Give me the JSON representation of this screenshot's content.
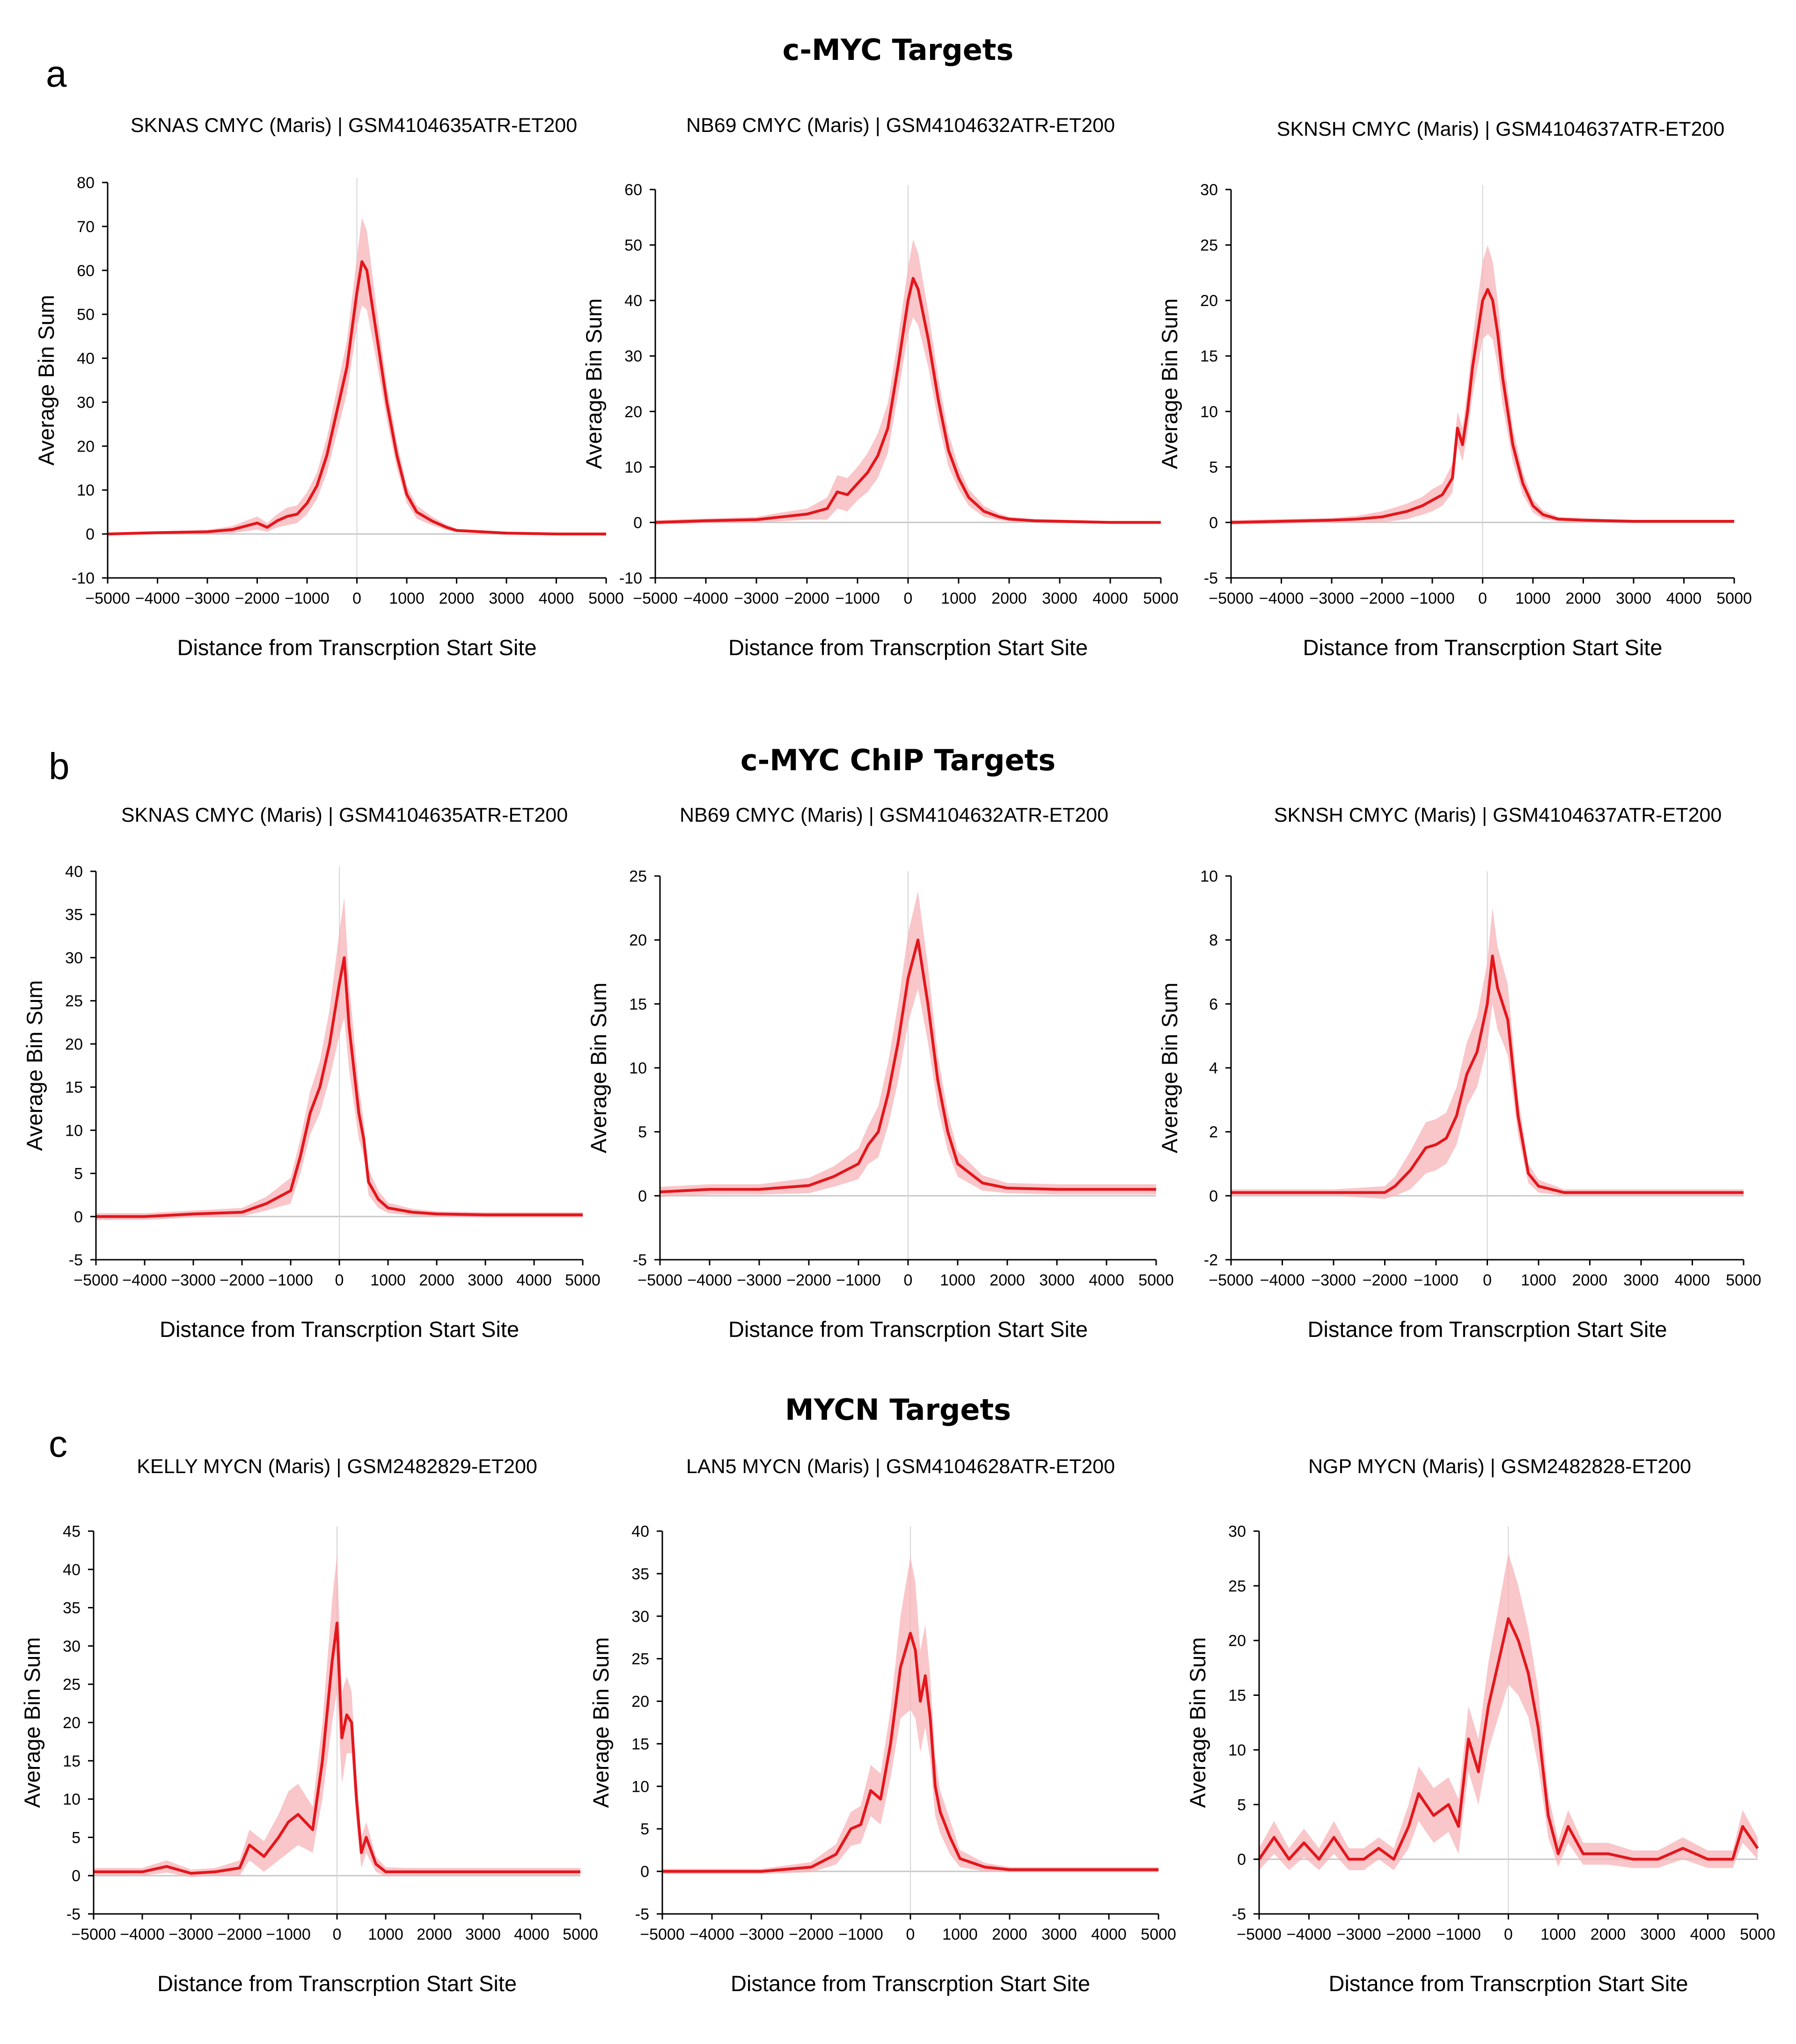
{
  "figure": {
    "sections": [
      {
        "letter": "a",
        "title": "c-MYC Targets"
      },
      {
        "letter": "b",
        "title": "c-MYC ChIP Targets"
      },
      {
        "letter": "c",
        "title": "MYCN Targets"
      }
    ],
    "colors": {
      "line": "#e3171c",
      "band": "#f7b3b8",
      "axis": "#000000",
      "baseline": "#c8c8c8",
      "center": "#d4d4d4"
    }
  },
  "chart_data": [
    {
      "type": "line",
      "title": "SKNAS CMYC (Maris) | GSM4104635ATR-ET200",
      "xlabel": "Distance from Transcrption Start Site",
      "ylabel": "Average Bin Sum",
      "xlim": [
        -5000,
        5000
      ],
      "ylim": [
        -10,
        80
      ],
      "yticks": [
        -10,
        0,
        10,
        20,
        30,
        40,
        50,
        60,
        70,
        80
      ],
      "xticks": [
        -5000,
        -4000,
        -3000,
        -2000,
        -1000,
        0,
        1000,
        2000,
        3000,
        4000,
        5000
      ],
      "x": [
        -5000,
        -4000,
        -3000,
        -2500,
        -2000,
        -1800,
        -1600,
        -1400,
        -1200,
        -1000,
        -800,
        -600,
        -400,
        -200,
        0,
        100,
        200,
        400,
        600,
        800,
        1000,
        1200,
        1500,
        1800,
        2000,
        2500,
        3000,
        4000,
        5000
      ],
      "y": [
        0,
        0.3,
        0.5,
        1,
        2.5,
        1.5,
        3,
        4,
        4.5,
        7,
        11,
        18,
        28,
        38,
        55,
        62,
        60,
        45,
        30,
        18,
        9,
        5,
        3,
        1.5,
        0.8,
        0.5,
        0.2,
        0,
        0
      ],
      "band": [
        0.3,
        0.3,
        0.4,
        0.8,
        1.5,
        1,
        1.5,
        2,
        2,
        2.5,
        3,
        4,
        5,
        6,
        8,
        10,
        9,
        6,
        4,
        3,
        2,
        1.5,
        1,
        0.6,
        0.4,
        0.3,
        0.2,
        0.2,
        0.2
      ]
    },
    {
      "type": "line",
      "title": "NB69 CMYC (Maris) | GSM4104632ATR-ET200",
      "xlabel": "Distance from Transcrption Start Site",
      "ylabel": "Average Bin Sum",
      "xlim": [
        -5000,
        5000
      ],
      "ylim": [
        -10,
        60
      ],
      "yticks": [
        -10,
        0,
        10,
        20,
        30,
        40,
        50,
        60
      ],
      "xticks": [
        -5000,
        -4000,
        -3000,
        -2000,
        -1000,
        0,
        1000,
        2000,
        3000,
        4000,
        5000
      ],
      "x": [
        -5000,
        -4000,
        -3000,
        -2500,
        -2000,
        -1800,
        -1600,
        -1400,
        -1200,
        -1000,
        -800,
        -600,
        -400,
        -200,
        0,
        100,
        200,
        400,
        600,
        800,
        1000,
        1200,
        1500,
        1800,
        2000,
        2500,
        3000,
        4000,
        5000
      ],
      "y": [
        0,
        0.3,
        0.5,
        1,
        1.5,
        2,
        2.5,
        5.5,
        5,
        7,
        9,
        12,
        17,
        28,
        40,
        44,
        42,
        33,
        22,
        13,
        8,
        4.5,
        2,
        1,
        0.6,
        0.3,
        0.2,
        0,
        0
      ],
      "band": [
        0.4,
        0.4,
        0.5,
        0.8,
        1,
        1.5,
        2,
        3,
        3,
        3,
        3.5,
        4,
        4.5,
        5,
        6,
        7,
        6.5,
        5,
        4,
        3,
        2,
        1.5,
        1,
        0.6,
        0.4,
        0.3,
        0.3,
        0.2,
        0.2
      ]
    },
    {
      "type": "line",
      "title": "SKNSH CMYC (Maris) | GSM4104637ATR-ET200",
      "xlabel": "Distance from Transcrption Start Site",
      "ylabel": "Average Bin Sum",
      "xlim": [
        -5000,
        5000
      ],
      "ylim": [
        -5,
        30
      ],
      "yticks": [
        -5,
        0,
        5,
        10,
        15,
        20,
        25,
        30
      ],
      "xticks": [
        -5000,
        -4000,
        -3000,
        -2000,
        -1000,
        0,
        1000,
        2000,
        3000,
        4000,
        5000
      ],
      "x": [
        -5000,
        -4000,
        -3000,
        -2500,
        -2000,
        -1500,
        -1200,
        -1000,
        -800,
        -600,
        -500,
        -400,
        -300,
        -200,
        0,
        100,
        200,
        300,
        400,
        600,
        800,
        1000,
        1200,
        1500,
        2000,
        3000,
        4000,
        5000
      ],
      "y": [
        0,
        0.1,
        0.2,
        0.3,
        0.5,
        1,
        1.5,
        2,
        2.5,
        4,
        8.5,
        7,
        10,
        14,
        20,
        21,
        20,
        17,
        13,
        7,
        3.5,
        1.5,
        0.7,
        0.3,
        0.2,
        0.1,
        0.1,
        0.1
      ],
      "band": [
        0.2,
        0.2,
        0.2,
        0.3,
        0.5,
        0.7,
        0.8,
        1,
        1,
        1.3,
        1.5,
        1.5,
        2,
        2.5,
        3.5,
        4,
        3.5,
        3,
        2.5,
        1.5,
        1,
        0.6,
        0.4,
        0.2,
        0.2,
        0.1,
        0.1,
        0.1
      ]
    },
    {
      "type": "line",
      "title": "SKNAS CMYC (Maris) | GSM4104635ATR-ET200",
      "xlabel": "Distance from Transcrption Start Site",
      "ylabel": "Average Bin Sum",
      "xlim": [
        -5000,
        5000
      ],
      "ylim": [
        -5,
        40
      ],
      "yticks": [
        -5,
        0,
        5,
        10,
        15,
        20,
        25,
        30,
        35,
        40
      ],
      "xticks": [
        -5000,
        -4000,
        -3000,
        -2000,
        -1000,
        0,
        1000,
        2000,
        3000,
        4000,
        5000
      ],
      "x": [
        -5000,
        -4000,
        -3000,
        -2000,
        -1500,
        -1000,
        -800,
        -600,
        -400,
        -200,
        0,
        100,
        200,
        400,
        500,
        600,
        800,
        1000,
        1500,
        2000,
        3000,
        4000,
        5000
      ],
      "y": [
        0,
        0,
        0.3,
        0.5,
        1.5,
        3,
        7,
        12,
        15,
        20,
        27,
        30,
        22,
        12,
        9,
        4,
        2,
        1,
        0.5,
        0.3,
        0.2,
        0.2,
        0.2
      ],
      "band": [
        0.4,
        0.4,
        0.4,
        0.5,
        0.8,
        1.5,
        2,
        2.5,
        3,
        4,
        6,
        7,
        5,
        3,
        2,
        1.5,
        1,
        0.6,
        0.4,
        0.3,
        0.3,
        0.3,
        0.3
      ]
    },
    {
      "type": "line",
      "title": "NB69 CMYC (Maris) | GSM4104632ATR-ET200",
      "xlabel": "Distance from Transcrption Start Site",
      "ylabel": "Average Bin Sum",
      "xlim": [
        -5000,
        5000
      ],
      "ylim": [
        -5,
        25
      ],
      "yticks": [
        -5,
        0,
        5,
        10,
        15,
        20,
        25
      ],
      "xticks": [
        -5000,
        -4000,
        -3000,
        -2000,
        -1000,
        0,
        1000,
        2000,
        3000,
        4000,
        5000
      ],
      "x": [
        -5000,
        -4000,
        -3000,
        -2000,
        -1500,
        -1000,
        -800,
        -600,
        -400,
        -200,
        0,
        200,
        400,
        600,
        800,
        1000,
        1500,
        2000,
        3000,
        4000,
        5000
      ],
      "y": [
        0.3,
        0.5,
        0.5,
        0.8,
        1.5,
        2.5,
        4,
        5,
        8,
        12,
        17,
        20,
        15,
        9,
        5,
        2.5,
        1,
        0.6,
        0.5,
        0.5,
        0.5
      ],
      "band": [
        0.4,
        0.4,
        0.4,
        0.6,
        0.8,
        1.2,
        1.5,
        2,
        2.5,
        3,
        3.5,
        3.8,
        3,
        2,
        1.5,
        1,
        0.6,
        0.4,
        0.4,
        0.4,
        0.4
      ]
    },
    {
      "type": "line",
      "title": "SKNSH CMYC (Maris) | GSM4104637ATR-ET200",
      "xlabel": "Distance from Transcrption Start Site",
      "ylabel": "Average Bin Sum",
      "xlim": [
        -5000,
        5000
      ],
      "ylim": [
        -2,
        10
      ],
      "yticks": [
        -2,
        0,
        2,
        4,
        6,
        8,
        10
      ],
      "xticks": [
        -5000,
        -4000,
        -3000,
        -2000,
        -1000,
        0,
        1000,
        2000,
        3000,
        4000,
        5000
      ],
      "x": [
        -5000,
        -4000,
        -3000,
        -2000,
        -1800,
        -1500,
        -1200,
        -1000,
        -800,
        -600,
        -400,
        -200,
        0,
        100,
        200,
        400,
        600,
        800,
        1000,
        1500,
        2000,
        3000,
        4000,
        5000
      ],
      "y": [
        0.1,
        0.1,
        0.1,
        0.1,
        0.3,
        0.8,
        1.5,
        1.6,
        1.8,
        2.5,
        3.8,
        4.5,
        6,
        7.5,
        6.5,
        5.5,
        2.5,
        0.7,
        0.3,
        0.1,
        0.1,
        0.1,
        0.1,
        0.1
      ],
      "band": [
        0.1,
        0.1,
        0.1,
        0.2,
        0.3,
        0.6,
        0.8,
        0.8,
        0.8,
        0.9,
        1,
        1.1,
        1.3,
        1.5,
        1.3,
        1.1,
        0.6,
        0.3,
        0.2,
        0.1,
        0.1,
        0.1,
        0.1,
        0.1
      ]
    },
    {
      "type": "line",
      "title": "KELLY MYCN (Maris) | GSM2482829-ET200",
      "xlabel": "Distance from Transcrption Start Site",
      "ylabel": "Average Bin Sum",
      "xlim": [
        -5000,
        5000
      ],
      "ylim": [
        -5,
        45
      ],
      "yticks": [
        -5,
        0,
        5,
        10,
        15,
        20,
        25,
        30,
        35,
        40,
        45
      ],
      "xticks": [
        -5000,
        -4000,
        -3000,
        -2000,
        -1000,
        0,
        1000,
        2000,
        3000,
        4000,
        5000
      ],
      "x": [
        -5000,
        -4000,
        -3500,
        -3000,
        -2500,
        -2000,
        -1800,
        -1500,
        -1200,
        -1000,
        -800,
        -500,
        -300,
        -100,
        0,
        100,
        200,
        300,
        400,
        500,
        600,
        800,
        1000,
        1500,
        2000,
        3000,
        4000,
        5000
      ],
      "y": [
        0.5,
        0.5,
        1.2,
        0.3,
        0.5,
        1,
        4,
        2.5,
        5,
        7,
        8,
        6,
        15,
        28,
        33,
        18,
        21,
        20,
        10,
        3,
        5,
        1.5,
        0.5,
        0.5,
        0.5,
        0.5,
        0.5,
        0.5
      ],
      "band": [
        0.5,
        0.5,
        0.8,
        0.5,
        0.5,
        1,
        2,
        2,
        3,
        4,
        4,
        3,
        5,
        8,
        9,
        6,
        5,
        4,
        3,
        2,
        2,
        1,
        0.6,
        0.5,
        0.5,
        0.5,
        0.5,
        0.5
      ]
    },
    {
      "type": "line",
      "title": "LAN5 MYCN (Maris) | GSM4104628ATR-ET200",
      "xlabel": "Distance from Transcrption Start Site",
      "ylabel": "Average Bin Sum",
      "xlim": [
        -5000,
        5000
      ],
      "ylim": [
        -5,
        40
      ],
      "yticks": [
        -5,
        0,
        5,
        10,
        15,
        20,
        25,
        30,
        35,
        40
      ],
      "xticks": [
        -5000,
        -4000,
        -3000,
        -2000,
        -1000,
        0,
        1000,
        2000,
        3000,
        4000,
        5000
      ],
      "x": [
        -5000,
        -4000,
        -3000,
        -2000,
        -1500,
        -1200,
        -1000,
        -800,
        -600,
        -400,
        -200,
        0,
        100,
        200,
        300,
        400,
        500,
        600,
        800,
        1000,
        1500,
        2000,
        3000,
        4000,
        5000
      ],
      "y": [
        0,
        0,
        0,
        0.5,
        2,
        5,
        5.5,
        9.5,
        8.5,
        15,
        24,
        28,
        26,
        20,
        23,
        18,
        10,
        7,
        4,
        1.5,
        0.5,
        0.2,
        0.2,
        0.2,
        0.2
      ],
      "band": [
        0.3,
        0.3,
        0.3,
        0.6,
        1.2,
        2,
        2.2,
        3,
        3,
        4,
        6,
        9,
        8,
        6,
        6,
        5,
        3.5,
        2.5,
        2,
        1,
        0.5,
        0.3,
        0.3,
        0.3,
        0.3
      ]
    },
    {
      "type": "line",
      "title": "NGP MYCN (Maris) | GSM2482828-ET200",
      "xlabel": "Distance from Transcrption Start Site",
      "ylabel": "Average Bin Sum",
      "xlim": [
        -5000,
        5000
      ],
      "ylim": [
        -5,
        30
      ],
      "yticks": [
        -5,
        0,
        5,
        10,
        15,
        20,
        25,
        30
      ],
      "xticks": [
        -5000,
        -4000,
        -3000,
        -2000,
        -1000,
        0,
        1000,
        2000,
        3000,
        4000,
        5000
      ],
      "x": [
        -5000,
        -4700,
        -4400,
        -4100,
        -3800,
        -3500,
        -3200,
        -2900,
        -2600,
        -2300,
        -2000,
        -1800,
        -1500,
        -1200,
        -1000,
        -800,
        -600,
        -400,
        -200,
        0,
        200,
        400,
        600,
        800,
        1000,
        1200,
        1500,
        2000,
        2500,
        3000,
        3500,
        4000,
        4500,
        4700,
        5000
      ],
      "y": [
        0,
        2,
        0,
        1.5,
        0,
        2,
        0,
        0,
        1,
        0,
        3,
        6,
        4,
        5,
        3,
        11,
        8,
        14,
        18,
        22,
        20,
        17,
        12,
        4,
        0.5,
        3,
        0.5,
        0.5,
        0,
        0,
        1,
        0,
        0,
        3,
        1
      ],
      "band": [
        1,
        1.5,
        1,
        1.3,
        1,
        1.5,
        1,
        1,
        1,
        1,
        2,
        2.5,
        2.5,
        2.5,
        2.5,
        3,
        3,
        4,
        5,
        6,
        5,
        4,
        3.5,
        2,
        1.2,
        1.5,
        1,
        1,
        0.8,
        0.8,
        1,
        0.8,
        0.8,
        1.5,
        1
      ]
    }
  ]
}
